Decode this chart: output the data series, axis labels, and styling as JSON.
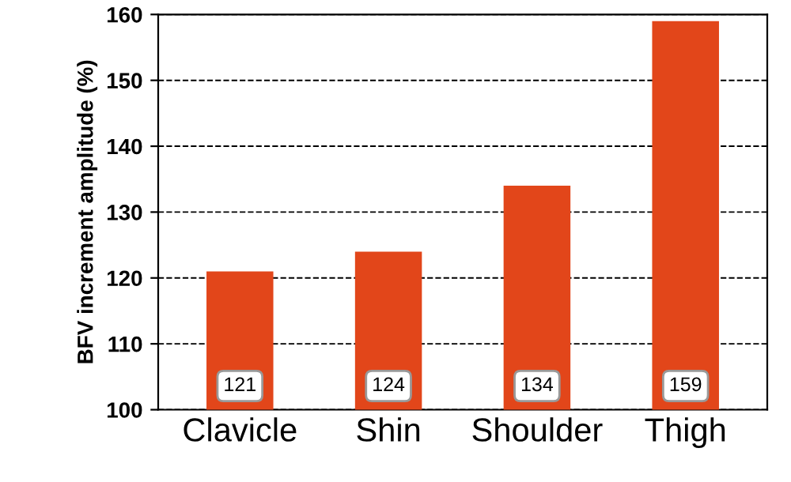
{
  "chart_data": {
    "type": "bar",
    "ylabel": "BFV increment amplitude (%)",
    "categories": [
      "Clavicle",
      "Shin",
      "Shoulder",
      "Thigh"
    ],
    "values": [
      121,
      124,
      134,
      159
    ],
    "color": "#e2461a",
    "data_labels": true,
    "ylim": [
      100,
      160
    ],
    "yticks": [
      100,
      110,
      120,
      130,
      140,
      150,
      160
    ],
    "grid": "y"
  }
}
